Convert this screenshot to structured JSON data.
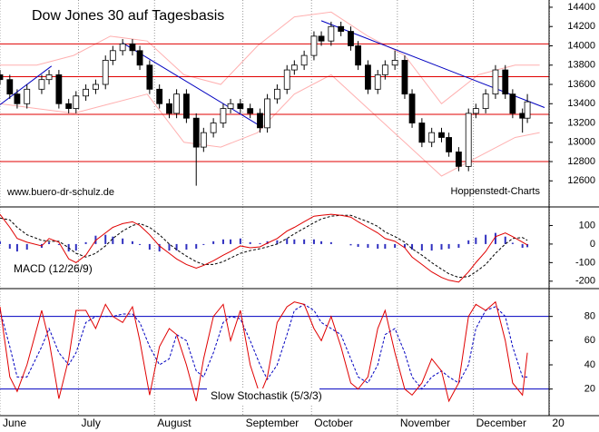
{
  "chart_data": [
    {
      "type": "candlestick",
      "title": "Dow Jones 30 auf Tagesbasis",
      "source": "www.buero-dr-schulz.de",
      "credit": "Hoppenstedt-Charts",
      "xlim": [
        0,
        222
      ],
      "xticks": [
        {
          "value": 0,
          "label": "June"
        },
        {
          "value": 32,
          "label": "July"
        },
        {
          "value": 63,
          "label": "August"
        },
        {
          "value": 99,
          "label": "September"
        },
        {
          "value": 127,
          "label": "October"
        },
        {
          "value": 162,
          "label": "November"
        },
        {
          "value": 193,
          "label": "December"
        },
        {
          "value": 224,
          "label": "20"
        }
      ],
      "x": [
        0,
        4,
        7,
        11,
        17,
        20,
        24,
        28,
        31,
        35,
        39,
        43,
        46,
        50,
        54,
        57,
        61,
        65,
        69,
        72,
        76,
        80,
        83,
        87,
        91,
        94,
        98,
        102,
        106,
        109,
        113,
        117,
        120,
        124,
        128,
        131,
        135,
        139,
        143,
        146,
        150,
        154,
        157,
        161,
        165,
        168,
        172,
        176,
        180,
        183,
        187,
        191,
        194,
        198,
        202,
        206,
        209,
        213,
        215
      ],
      "open": [
        13700,
        13650,
        13500,
        13400,
        13550,
        13650,
        13700,
        13400,
        13350,
        13480,
        13550,
        13600,
        13850,
        13950,
        14020,
        13950,
        13800,
        13550,
        13400,
        13300,
        13500,
        13250,
        12950,
        13100,
        13200,
        13350,
        13400,
        13350,
        13300,
        13150,
        13450,
        13550,
        13750,
        13800,
        13900,
        14100,
        14050,
        14200,
        14150,
        14000,
        13800,
        13550,
        13700,
        13800,
        13850,
        13500,
        13200,
        13000,
        13100,
        13050,
        12900,
        12750,
        13300,
        13350,
        13500,
        13750,
        13500,
        13300,
        13250
      ],
      "high": [
        13750,
        13700,
        13550,
        13600,
        13700,
        13750,
        13750,
        13450,
        13530,
        13600,
        13650,
        13900,
        14000,
        14070,
        14070,
        14000,
        13850,
        13600,
        13450,
        13550,
        13550,
        13300,
        13150,
        13250,
        13400,
        13450,
        13450,
        13400,
        13350,
        13500,
        13600,
        13800,
        13850,
        13950,
        14150,
        14150,
        14250,
        14250,
        14200,
        14050,
        13850,
        13750,
        13850,
        13950,
        13900,
        13550,
        13250,
        13150,
        13150,
        13100,
        12950,
        13350,
        13400,
        13550,
        13800,
        13800,
        13550,
        13350,
        13500
      ],
      "low": [
        13600,
        13450,
        13350,
        13350,
        13500,
        13600,
        13350,
        13300,
        13300,
        13430,
        13500,
        13550,
        13800,
        13900,
        13900,
        13750,
        13500,
        13350,
        13250,
        13250,
        13200,
        12550,
        12900,
        13050,
        13150,
        13300,
        13300,
        13250,
        13100,
        13100,
        13400,
        13500,
        13700,
        13750,
        13850,
        14000,
        14000,
        14100,
        13950,
        13750,
        13500,
        13500,
        13650,
        13750,
        13450,
        13150,
        12950,
        12950,
        13000,
        12850,
        12700,
        12700,
        13250,
        13300,
        13450,
        13450,
        13250,
        13100,
        13200
      ],
      "close": [
        13650,
        13500,
        13400,
        13550,
        13650,
        13700,
        13400,
        13350,
        13480,
        13550,
        13600,
        13850,
        13950,
        14020,
        13950,
        13800,
        13550,
        13400,
        13300,
        13500,
        13250,
        12950,
        13100,
        13200,
        13350,
        13400,
        13350,
        13300,
        13150,
        13450,
        13550,
        13750,
        13800,
        13900,
        14100,
        14050,
        14200,
        14150,
        14000,
        13800,
        13550,
        13700,
        13800,
        13850,
        13500,
        13200,
        13000,
        13100,
        13050,
        12900,
        12750,
        13300,
        13350,
        13500,
        13750,
        13500,
        13300,
        13250,
        13420
      ],
      "up_color": "#ffffff",
      "down_color": "#000000",
      "band_x": [
        0,
        15,
        30,
        45,
        60,
        75,
        90,
        105,
        120,
        135,
        150,
        165,
        180,
        195,
        210,
        220
      ],
      "band_upper": [
        13800,
        13800,
        13900,
        14100,
        14050,
        13700,
        13600,
        14000,
        14300,
        14350,
        14100,
        13900,
        13400,
        13700,
        13800,
        13800
      ],
      "band_lower": [
        13400,
        13350,
        13300,
        13400,
        13500,
        13000,
        12950,
        13100,
        13500,
        13700,
        13350,
        13000,
        12650,
        12850,
        13050,
        13100
      ],
      "band_color": "#ffb0b0",
      "levels": [
        14020,
        13680,
        13290,
        12800
      ],
      "level_color": "#e00000",
      "trendlines": [
        {
          "x": [
            0,
            21
          ],
          "y": [
            13390,
            13790
          ]
        },
        {
          "x": [
            50,
            107
          ],
          "y": [
            14030,
            13155
          ]
        },
        {
          "x": [
            131,
            222
          ],
          "y": [
            14260,
            13360
          ]
        }
      ],
      "trend_color": "#0000c0",
      "ylim": [
        12330,
        14475
      ],
      "yticks": [
        12600,
        12800,
        13000,
        13200,
        13400,
        13600,
        13800,
        14000,
        14200,
        14400
      ]
    },
    {
      "type": "macd",
      "label": "MACD (12/26/9)",
      "macd": [
        160,
        90,
        30,
        10,
        -10,
        30,
        10,
        -80,
        -100,
        -60,
        20,
        60,
        90,
        110,
        120,
        100,
        50,
        -10,
        -50,
        -80,
        -110,
        -130,
        -115,
        -90,
        -60,
        -40,
        -10,
        -20,
        -15,
        5,
        30,
        70,
        90,
        120,
        150,
        155,
        160,
        155,
        145,
        120,
        90,
        60,
        30,
        15,
        -20,
        -70,
        -110,
        -150,
        -180,
        -195,
        -205,
        -150,
        -100,
        -40,
        40,
        60,
        40,
        10,
        -5
      ],
      "signal": [
        140,
        130,
        90,
        50,
        20,
        15,
        15,
        -20,
        -50,
        -70,
        -50,
        -10,
        30,
        70,
        100,
        110,
        90,
        50,
        0,
        -30,
        -65,
        -95,
        -110,
        -110,
        -95,
        -75,
        -50,
        -35,
        -25,
        -15,
        0,
        30,
        55,
        85,
        115,
        135,
        150,
        155,
        155,
        140,
        120,
        95,
        65,
        40,
        10,
        -25,
        -60,
        -100,
        -135,
        -160,
        -180,
        -175,
        -150,
        -110,
        -50,
        0,
        30,
        35,
        20
      ],
      "histogram": [
        15,
        -25,
        -40,
        -30,
        -20,
        10,
        -5,
        -40,
        -35,
        10,
        45,
        50,
        40,
        30,
        15,
        -5,
        -30,
        -40,
        -35,
        -35,
        -30,
        -25,
        -5,
        15,
        25,
        25,
        30,
        10,
        5,
        15,
        20,
        30,
        25,
        25,
        25,
        15,
        10,
        0,
        -7,
        -15,
        -20,
        -25,
        -25,
        -20,
        -20,
        -30,
        -35,
        -35,
        -30,
        -25,
        -20,
        20,
        35,
        50,
        60,
        40,
        7,
        -20,
        -17
      ],
      "macd_color": "#e00000",
      "signal_color": "#000000",
      "hist_color": "#3030c0",
      "ylim": [
        -240,
        200
      ],
      "yticks": [
        -200,
        -100,
        0,
        100
      ]
    },
    {
      "type": "stochastic",
      "label": "Slow Stochastik (5/3/3)",
      "k": [
        88,
        30,
        18,
        40,
        85,
        60,
        12,
        45,
        85,
        85,
        70,
        90,
        80,
        75,
        88,
        60,
        15,
        55,
        70,
        65,
        40,
        10,
        45,
        80,
        90,
        60,
        85,
        40,
        15,
        30,
        75,
        88,
        92,
        90,
        70,
        60,
        80,
        55,
        25,
        20,
        30,
        70,
        85,
        50,
        20,
        15,
        25,
        45,
        35,
        10,
        25,
        80,
        90,
        85,
        92,
        60,
        25,
        15,
        50
      ],
      "d": [
        85,
        55,
        30,
        30,
        55,
        70,
        50,
        40,
        50,
        75,
        80,
        80,
        80,
        82,
        82,
        75,
        55,
        40,
        45,
        65,
        60,
        35,
        30,
        50,
        75,
        80,
        78,
        60,
        40,
        28,
        40,
        65,
        85,
        90,
        85,
        75,
        70,
        65,
        45,
        30,
        25,
        40,
        65,
        70,
        50,
        30,
        20,
        30,
        35,
        30,
        25,
        40,
        70,
        85,
        88,
        80,
        55,
        30,
        30
      ],
      "k_color": "#e00000",
      "d_color": "#0000c0",
      "levels": [
        20,
        80
      ],
      "level_color": "#0000c0",
      "ylim": [
        -2,
        103
      ],
      "yticks": [
        20,
        40,
        60,
        80
      ]
    }
  ]
}
